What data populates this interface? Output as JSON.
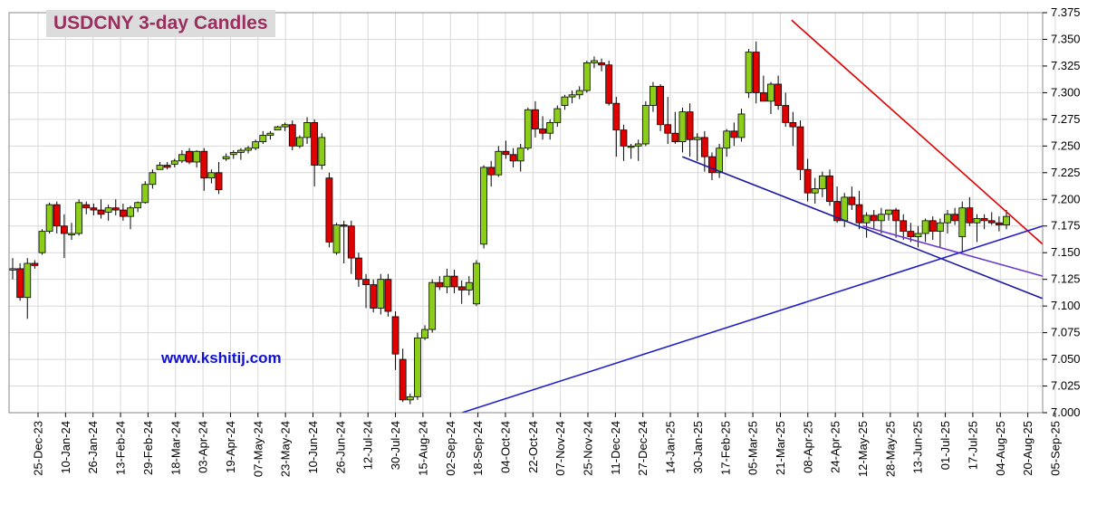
{
  "chart_data": {
    "type": "candlestick",
    "title": "USDCNY 3-day Candles",
    "watermark": "www.kshitij.com",
    "y_ticks": [
      "7.375",
      "7.350",
      "7.325",
      "7.300",
      "7.275",
      "7.250",
      "7.225",
      "7.200",
      "7.175",
      "7.150",
      "7.125",
      "7.100",
      "7.075",
      "7.050",
      "7.025",
      "7.000"
    ],
    "ylim": [
      7.0,
      7.375
    ],
    "x_ticks": [
      "25-Dec-23",
      "10-Jan-24",
      "26-Jan-24",
      "13-Feb-24",
      "29-Feb-24",
      "18-Mar-24",
      "03-Apr-24",
      "19-Apr-24",
      "07-May-24",
      "23-May-24",
      "10-Jun-24",
      "26-Jun-24",
      "12-Jul-24",
      "30-Jul-24",
      "15-Aug-24",
      "02-Sep-24",
      "18-Sep-24",
      "04-Oct-24",
      "22-Oct-24",
      "07-Nov-24",
      "25-Nov-24",
      "11-Dec-24",
      "27-Dec-24",
      "14-Jan-25",
      "30-Jan-25",
      "17-Feb-25",
      "05-Mar-25",
      "21-Mar-25",
      "08-Apr-25",
      "24-Apr-25",
      "12-May-25",
      "28-May-25",
      "13-Jun-25",
      "01-Jul-25",
      "17-Jul-25",
      "04-Aug-25",
      "20-Aug-25",
      "05-Sep-25"
    ],
    "grid": true,
    "up_color": "#8ccc1a",
    "down_color": "#e00000",
    "candles": [
      [
        7.135,
        7.145,
        7.125,
        7.135
      ],
      [
        7.135,
        7.14,
        7.105,
        7.108
      ],
      [
        7.108,
        7.145,
        7.088,
        7.14
      ],
      [
        7.14,
        7.143,
        7.135,
        7.138
      ],
      [
        7.15,
        7.172,
        7.148,
        7.17
      ],
      [
        7.17,
        7.197,
        7.168,
        7.195
      ],
      [
        7.195,
        7.198,
        7.168,
        7.175
      ],
      [
        7.175,
        7.186,
        7.145,
        7.168
      ],
      [
        7.168,
        7.178,
        7.162,
        7.168
      ],
      [
        7.168,
        7.2,
        7.166,
        7.197
      ],
      [
        7.195,
        7.198,
        7.186,
        7.192
      ],
      [
        7.192,
        7.196,
        7.185,
        7.19
      ],
      [
        7.19,
        7.2,
        7.182,
        7.186
      ],
      [
        7.188,
        7.195,
        7.18,
        7.192
      ],
      [
        7.192,
        7.2,
        7.185,
        7.19
      ],
      [
        7.19,
        7.196,
        7.18,
        7.184
      ],
      [
        7.184,
        7.194,
        7.172,
        7.192
      ],
      [
        7.192,
        7.198,
        7.188,
        7.197
      ],
      [
        7.197,
        7.217,
        7.196,
        7.214
      ],
      [
        7.214,
        7.228,
        7.21,
        7.225
      ],
      [
        7.228,
        7.235,
        7.228,
        7.232
      ],
      [
        7.232,
        7.235,
        7.228,
        7.23
      ],
      [
        7.233,
        7.238,
        7.23,
        7.236
      ],
      [
        7.236,
        7.246,
        7.234,
        7.242
      ],
      [
        7.245,
        7.248,
        7.233,
        7.235
      ],
      [
        7.235,
        7.246,
        7.23,
        7.245
      ],
      [
        7.245,
        7.248,
        7.208,
        7.22
      ],
      [
        7.22,
        7.228,
        7.215,
        7.225
      ],
      [
        7.225,
        7.235,
        7.205,
        7.209
      ],
      [
        7.238,
        7.243,
        7.236,
        7.24
      ],
      [
        7.242,
        7.246,
        7.238,
        7.244
      ],
      [
        7.244,
        7.248,
        7.237,
        7.246
      ],
      [
        7.246,
        7.25,
        7.243,
        7.248
      ],
      [
        7.248,
        7.256,
        7.246,
        7.254
      ],
      [
        7.254,
        7.264,
        7.252,
        7.26
      ],
      [
        7.26,
        7.264,
        7.256,
        7.262
      ],
      [
        7.265,
        7.269,
        7.265,
        7.268
      ],
      [
        7.268,
        7.272,
        7.264,
        7.27
      ],
      [
        7.27,
        7.274,
        7.246,
        7.25
      ],
      [
        7.25,
        7.26,
        7.248,
        7.258
      ],
      [
        7.258,
        7.277,
        7.252,
        7.272
      ],
      [
        7.272,
        7.275,
        7.212,
        7.232
      ],
      [
        7.232,
        7.262,
        7.228,
        7.258
      ],
      [
        7.22,
        7.225,
        7.155,
        7.16
      ],
      [
        7.15,
        7.178,
        7.148,
        7.176
      ],
      [
        7.176,
        7.18,
        7.14,
        7.175
      ],
      [
        7.175,
        7.18,
        7.13,
        7.145
      ],
      [
        7.145,
        7.15,
        7.118,
        7.125
      ],
      [
        7.125,
        7.13,
        7.098,
        7.12
      ],
      [
        7.12,
        7.125,
        7.094,
        7.098
      ],
      [
        7.098,
        7.13,
        7.092,
        7.125
      ],
      [
        7.125,
        7.13,
        7.09,
        7.095
      ],
      [
        7.09,
        7.095,
        7.04,
        7.055
      ],
      [
        7.05,
        7.06,
        7.01,
        7.012
      ],
      [
        7.012,
        7.018,
        7.008,
        7.015
      ],
      [
        7.015,
        7.075,
        7.012,
        7.07
      ],
      [
        7.07,
        7.082,
        7.068,
        7.078
      ],
      [
        7.078,
        7.125,
        7.075,
        7.122
      ],
      [
        7.122,
        7.128,
        7.115,
        7.118
      ],
      [
        7.118,
        7.135,
        7.112,
        7.128
      ],
      [
        7.128,
        7.134,
        7.112,
        7.118
      ],
      [
        7.118,
        7.124,
        7.102,
        7.115
      ],
      [
        7.115,
        7.128,
        7.11,
        7.122
      ],
      [
        7.102,
        7.143,
        7.1,
        7.14
      ],
      [
        7.158,
        7.232,
        7.154,
        7.23
      ],
      [
        7.23,
        7.236,
        7.212,
        7.223
      ],
      [
        7.223,
        7.25,
        7.221,
        7.245
      ],
      [
        7.245,
        7.255,
        7.238,
        7.242
      ],
      [
        7.242,
        7.248,
        7.23,
        7.236
      ],
      [
        7.236,
        7.252,
        7.226,
        7.248
      ],
      [
        7.248,
        7.286,
        7.246,
        7.284
      ],
      [
        7.284,
        7.292,
        7.258,
        7.266
      ],
      [
        7.266,
        7.278,
        7.256,
        7.262
      ],
      [
        7.262,
        7.275,
        7.256,
        7.272
      ],
      [
        7.272,
        7.288,
        7.268,
        7.285
      ],
      [
        7.288,
        7.298,
        7.284,
        7.296
      ],
      [
        7.296,
        7.302,
        7.29,
        7.298
      ],
      [
        7.298,
        7.306,
        7.294,
        7.302
      ],
      [
        7.302,
        7.33,
        7.3,
        7.328
      ],
      [
        7.328,
        7.334,
        7.323,
        7.33
      ],
      [
        7.328,
        7.332,
        7.32,
        7.326
      ],
      [
        7.326,
        7.33,
        7.288,
        7.29
      ],
      [
        7.29,
        7.296,
        7.24,
        7.265
      ],
      [
        7.265,
        7.27,
        7.236,
        7.25
      ],
      [
        7.25,
        7.252,
        7.238,
        7.25
      ],
      [
        7.25,
        7.256,
        7.236,
        7.252
      ],
      [
        7.252,
        7.292,
        7.25,
        7.288
      ],
      [
        7.288,
        7.31,
        7.282,
        7.306
      ],
      [
        7.306,
        7.308,
        7.264,
        7.27
      ],
      [
        7.27,
        7.296,
        7.252,
        7.262
      ],
      [
        7.262,
        7.282,
        7.252,
        7.254
      ],
      [
        7.254,
        7.286,
        7.244,
        7.282
      ],
      [
        7.282,
        7.29,
        7.24,
        7.256
      ],
      [
        7.256,
        7.262,
        7.236,
        7.258
      ],
      [
        7.258,
        7.264,
        7.226,
        7.24
      ],
      [
        7.24,
        7.244,
        7.218,
        7.225
      ],
      [
        7.225,
        7.252,
        7.22,
        7.248
      ],
      [
        7.248,
        7.266,
        7.24,
        7.264
      ],
      [
        7.264,
        7.272,
        7.25,
        7.258
      ],
      [
        7.258,
        7.285,
        7.254,
        7.28
      ],
      [
        7.3,
        7.341,
        7.295,
        7.338
      ],
      [
        7.338,
        7.348,
        7.29,
        7.3
      ],
      [
        7.3,
        7.316,
        7.292,
        7.292
      ],
      [
        7.292,
        7.31,
        7.28,
        7.308
      ],
      [
        7.308,
        7.316,
        7.284,
        7.288
      ],
      [
        7.288,
        7.3,
        7.268,
        7.272
      ],
      [
        7.272,
        7.282,
        7.25,
        7.268
      ],
      [
        7.268,
        7.274,
        7.218,
        7.228
      ],
      [
        7.228,
        7.238,
        7.198,
        7.206
      ],
      [
        7.206,
        7.22,
        7.196,
        7.21
      ],
      [
        7.21,
        7.226,
        7.202,
        7.222
      ],
      [
        7.222,
        7.228,
        7.194,
        7.198
      ],
      [
        7.198,
        7.212,
        7.178,
        7.18
      ],
      [
        7.18,
        7.206,
        7.174,
        7.202
      ],
      [
        7.202,
        7.212,
        7.19,
        7.195
      ],
      [
        7.195,
        7.208,
        7.172,
        7.178
      ],
      [
        7.178,
        7.188,
        7.164,
        7.185
      ],
      [
        7.185,
        7.19,
        7.172,
        7.18
      ],
      [
        7.18,
        7.192,
        7.168,
        7.186
      ],
      [
        7.186,
        7.19,
        7.18,
        7.19
      ],
      [
        7.19,
        7.192,
        7.164,
        7.18
      ],
      [
        7.18,
        7.186,
        7.162,
        7.17
      ],
      [
        7.17,
        7.178,
        7.16,
        7.165
      ],
      [
        7.165,
        7.175,
        7.155,
        7.168
      ],
      [
        7.168,
        7.182,
        7.16,
        7.18
      ],
      [
        7.18,
        7.184,
        7.162,
        7.17
      ],
      [
        7.17,
        7.182,
        7.155,
        7.178
      ],
      [
        7.178,
        7.19,
        7.168,
        7.186
      ],
      [
        7.186,
        7.192,
        7.176,
        7.18
      ],
      [
        7.165,
        7.198,
        7.15,
        7.192
      ],
      [
        7.192,
        7.202,
        7.175,
        7.178
      ],
      [
        7.178,
        7.186,
        7.16,
        7.182
      ],
      [
        7.182,
        7.186,
        7.172,
        7.18
      ],
      [
        7.18,
        7.188,
        7.176,
        7.178
      ],
      [
        7.178,
        7.184,
        7.17,
        7.176
      ],
      [
        7.176,
        7.19,
        7.172,
        7.184
      ]
    ],
    "trendlines": [
      {
        "color": "#e00000",
        "from": [
          "24-Mar-25",
          7.368
        ],
        "to": [
          "end",
          7.158
        ]
      },
      {
        "color": "#1a1aa0",
        "from": [
          "17-Jan-25",
          7.24
        ],
        "to": [
          "end",
          7.107
        ]
      },
      {
        "color": "#6a3ad0",
        "from": [
          "06-May-25",
          7.175
        ],
        "to": [
          "end",
          7.128
        ]
      },
      {
        "color": "#2020c8",
        "from": [
          "06-Sep-24",
          7.0
        ],
        "to": [
          "end",
          7.175
        ]
      }
    ]
  }
}
